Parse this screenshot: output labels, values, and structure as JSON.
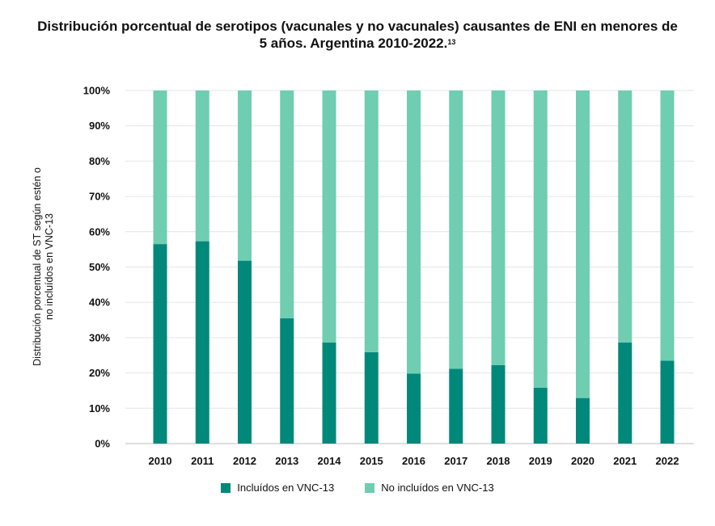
{
  "chart_data": {
    "type": "bar",
    "stacked": true,
    "title": "Distribución porcentual de serotipos (vacunales y no vacunales) causantes de ENI en menores de 5 años. Argentina 2010-2022.",
    "title_superscript": "13",
    "ylabel": "Distribución porcentual de ST según estén o no incluídos en VNC-13",
    "categories": [
      "2010",
      "2011",
      "2012",
      "2013",
      "2014",
      "2015",
      "2016",
      "2017",
      "2018",
      "2019",
      "2020",
      "2021",
      "2022"
    ],
    "yticks": [
      "0%",
      "10%",
      "20%",
      "30%",
      "40%",
      "50%",
      "60%",
      "70%",
      "80%",
      "90%",
      "100%"
    ],
    "ylim": [
      0,
      100
    ],
    "grid": true,
    "legend_position": "bottom",
    "series": [
      {
        "name": "Incluídos en VNC-13",
        "color": "#00887a",
        "values": [
          56.5,
          57.3,
          51.8,
          35.5,
          28.6,
          25.9,
          19.8,
          21.2,
          22.2,
          15.8,
          12.9,
          28.6,
          23.5
        ]
      },
      {
        "name": "No incluídos en VNC-13",
        "color": "#6fcdb1",
        "values": [
          43.5,
          42.7,
          48.2,
          64.5,
          71.4,
          74.1,
          80.2,
          78.8,
          77.8,
          84.2,
          87.1,
          71.4,
          76.5
        ]
      }
    ]
  }
}
